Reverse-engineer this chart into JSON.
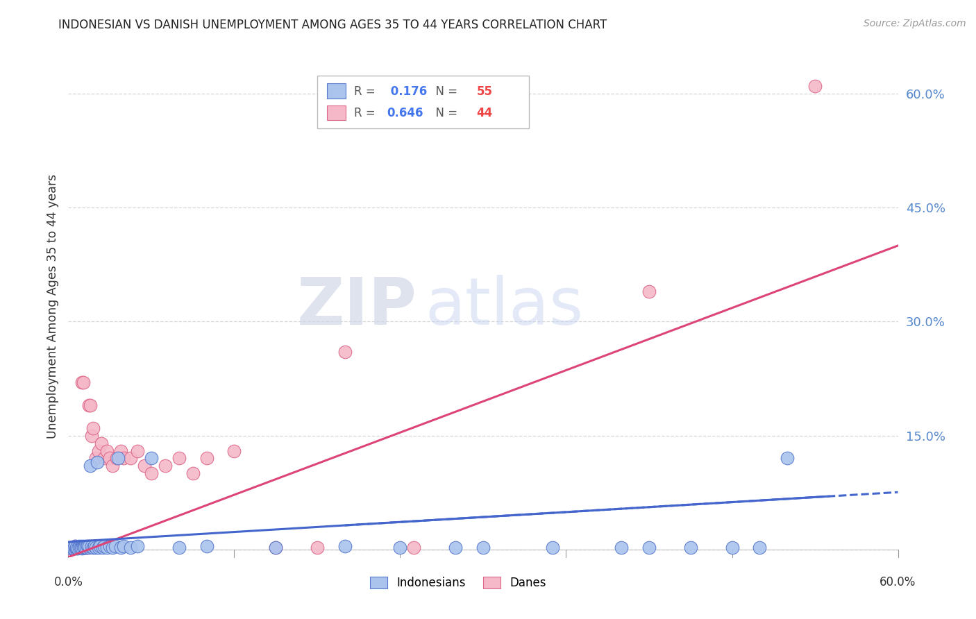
{
  "title": "INDONESIAN VS DANISH UNEMPLOYMENT AMONG AGES 35 TO 44 YEARS CORRELATION CHART",
  "source": "Source: ZipAtlas.com",
  "ylabel": "Unemployment Among Ages 35 to 44 years",
  "xlim": [
    0.0,
    0.6
  ],
  "ylim": [
    -0.01,
    0.65
  ],
  "yticks": [
    0.0,
    0.15,
    0.3,
    0.45,
    0.6
  ],
  "ytick_labels": [
    "",
    "15.0%",
    "30.0%",
    "45.0%",
    "60.0%"
  ],
  "legend_blue_r": "0.176",
  "legend_blue_n": "55",
  "legend_pink_r": "0.646",
  "legend_pink_n": "44",
  "indonesian_color": "#aac4ee",
  "danish_color": "#f5b8c8",
  "indonesian_edge_color": "#5577cc",
  "danish_edge_color": "#dd6688",
  "indonesian_line_color": "#4466cc",
  "danish_line_color": "#dd4477",
  "watermark_zip": "ZIP",
  "watermark_atlas": "atlas",
  "background_color": "#ffffff",
  "grid_color": "#cccccc",
  "ind_x": [
    0.002,
    0.003,
    0.004,
    0.005,
    0.005,
    0.006,
    0.006,
    0.007,
    0.008,
    0.008,
    0.009,
    0.01,
    0.01,
    0.01,
    0.011,
    0.012,
    0.012,
    0.013,
    0.014,
    0.015,
    0.015,
    0.016,
    0.017,
    0.018,
    0.019,
    0.02,
    0.021,
    0.022,
    0.023,
    0.025,
    0.026,
    0.028,
    0.03,
    0.032,
    0.034,
    0.036,
    0.038,
    0.04,
    0.045,
    0.05,
    0.06,
    0.08,
    0.1,
    0.15,
    0.2,
    0.24,
    0.28,
    0.3,
    0.35,
    0.4,
    0.42,
    0.45,
    0.48,
    0.5,
    0.52
  ],
  "ind_y": [
    0.002,
    0.003,
    0.002,
    0.003,
    0.004,
    0.002,
    0.003,
    0.002,
    0.004,
    0.003,
    0.003,
    0.004,
    0.003,
    0.002,
    0.003,
    0.004,
    0.003,
    0.003,
    0.004,
    0.003,
    0.004,
    0.11,
    0.004,
    0.003,
    0.004,
    0.003,
    0.115,
    0.003,
    0.004,
    0.003,
    0.004,
    0.003,
    0.004,
    0.003,
    0.004,
    0.12,
    0.003,
    0.004,
    0.003,
    0.004,
    0.12,
    0.003,
    0.004,
    0.003,
    0.004,
    0.003,
    0.003,
    0.003,
    0.003,
    0.003,
    0.003,
    0.003,
    0.003,
    0.003,
    0.12
  ],
  "dan_x": [
    0.001,
    0.002,
    0.003,
    0.004,
    0.005,
    0.006,
    0.007,
    0.008,
    0.009,
    0.01,
    0.01,
    0.011,
    0.012,
    0.013,
    0.014,
    0.015,
    0.016,
    0.017,
    0.018,
    0.02,
    0.022,
    0.024,
    0.026,
    0.028,
    0.03,
    0.032,
    0.035,
    0.038,
    0.04,
    0.045,
    0.05,
    0.055,
    0.06,
    0.07,
    0.08,
    0.09,
    0.1,
    0.12,
    0.15,
    0.18,
    0.2,
    0.25,
    0.42,
    0.54
  ],
  "dan_y": [
    0.002,
    0.003,
    0.003,
    0.003,
    0.004,
    0.003,
    0.003,
    0.003,
    0.003,
    0.003,
    0.22,
    0.22,
    0.003,
    0.003,
    0.003,
    0.19,
    0.19,
    0.15,
    0.16,
    0.12,
    0.13,
    0.14,
    0.12,
    0.13,
    0.12,
    0.11,
    0.12,
    0.13,
    0.12,
    0.12,
    0.13,
    0.11,
    0.1,
    0.11,
    0.12,
    0.1,
    0.12,
    0.13,
    0.003,
    0.003,
    0.26,
    0.003,
    0.34,
    0.61
  ],
  "ind_line_x0": 0.0,
  "ind_line_x1": 0.55,
  "ind_line_xdash0": 0.2,
  "ind_line_xdash1": 0.6,
  "dan_line_x0": 0.0,
  "dan_line_x1": 0.6
}
